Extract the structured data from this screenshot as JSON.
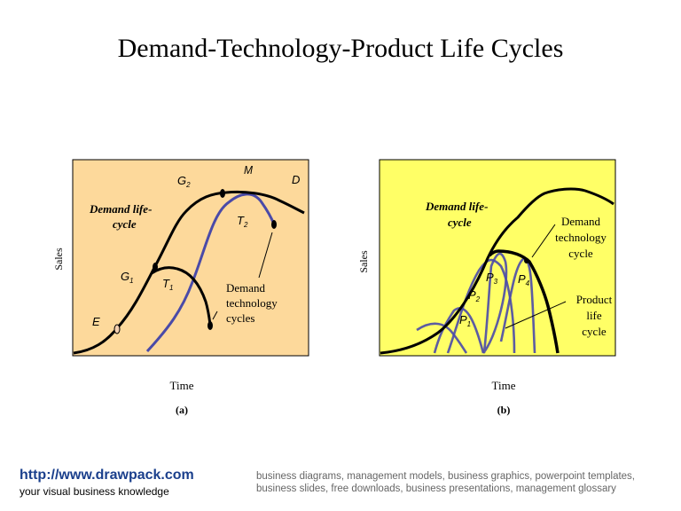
{
  "title": "Demand-Technology-Product Life Cycles",
  "colors": {
    "panel_a_bg": "#fdd99b",
    "panel_b_bg": "#ffff66",
    "demand_curve": "#000000",
    "technology_curve_blue": "#4a4aa8"
  },
  "panel_a": {
    "caption": "(a)",
    "xlabel": "Time",
    "ylabel": "Sales",
    "demand_label_1": "Demand life-",
    "demand_label_2": "cycle",
    "points": {
      "E": "E",
      "G1": "G",
      "G1_sub": "1",
      "G2": "G",
      "G2_sub": "2",
      "M": "M",
      "D": "D"
    },
    "t1": "T",
    "t1_sub": "1",
    "t2": "T",
    "t2_sub": "2",
    "callout": [
      "Demand",
      "technology",
      "cycles"
    ]
  },
  "panel_b": {
    "caption": "(b)",
    "xlabel": "Time",
    "ylabel": "Sales",
    "demand_label_1": "Demand life-",
    "demand_label_2": "cycle",
    "tech_callout": [
      "Demand",
      "technology",
      "cycle"
    ],
    "product_callout": [
      "Product",
      "life",
      "cycle"
    ],
    "products": [
      {
        "l": "P",
        "s": "1"
      },
      {
        "l": "P",
        "s": "2"
      },
      {
        "l": "P",
        "s": "3"
      },
      {
        "l": "P",
        "s": "4"
      }
    ]
  },
  "footer": {
    "url": "http://www.drawpack.com",
    "tagline": "your visual business knowledge",
    "keywords": "business diagrams, management models, business graphics, powerpoint templates, business slides, free downloads, business presentations, management glossary"
  }
}
